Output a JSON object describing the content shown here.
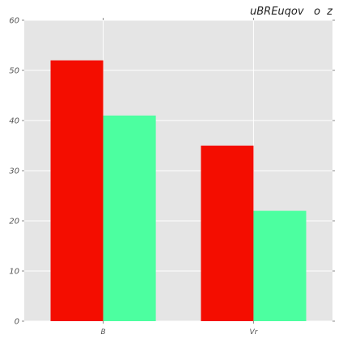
{
  "chart_data": {
    "type": "bar",
    "title": "uBREuqov   o  z",
    "categories": [
      "B",
      "Vr"
    ],
    "series": [
      {
        "color": "#f40d00",
        "values": [
          52,
          35
        ]
      },
      {
        "color": "#4cffa0",
        "values": [
          41,
          22
        ]
      }
    ],
    "ylim": [
      0,
      60
    ],
    "yticks": [
      0,
      10,
      20,
      30,
      40,
      50,
      60
    ],
    "grid": true,
    "background": "#e5e5e5",
    "grid_color": "#ffffff"
  }
}
